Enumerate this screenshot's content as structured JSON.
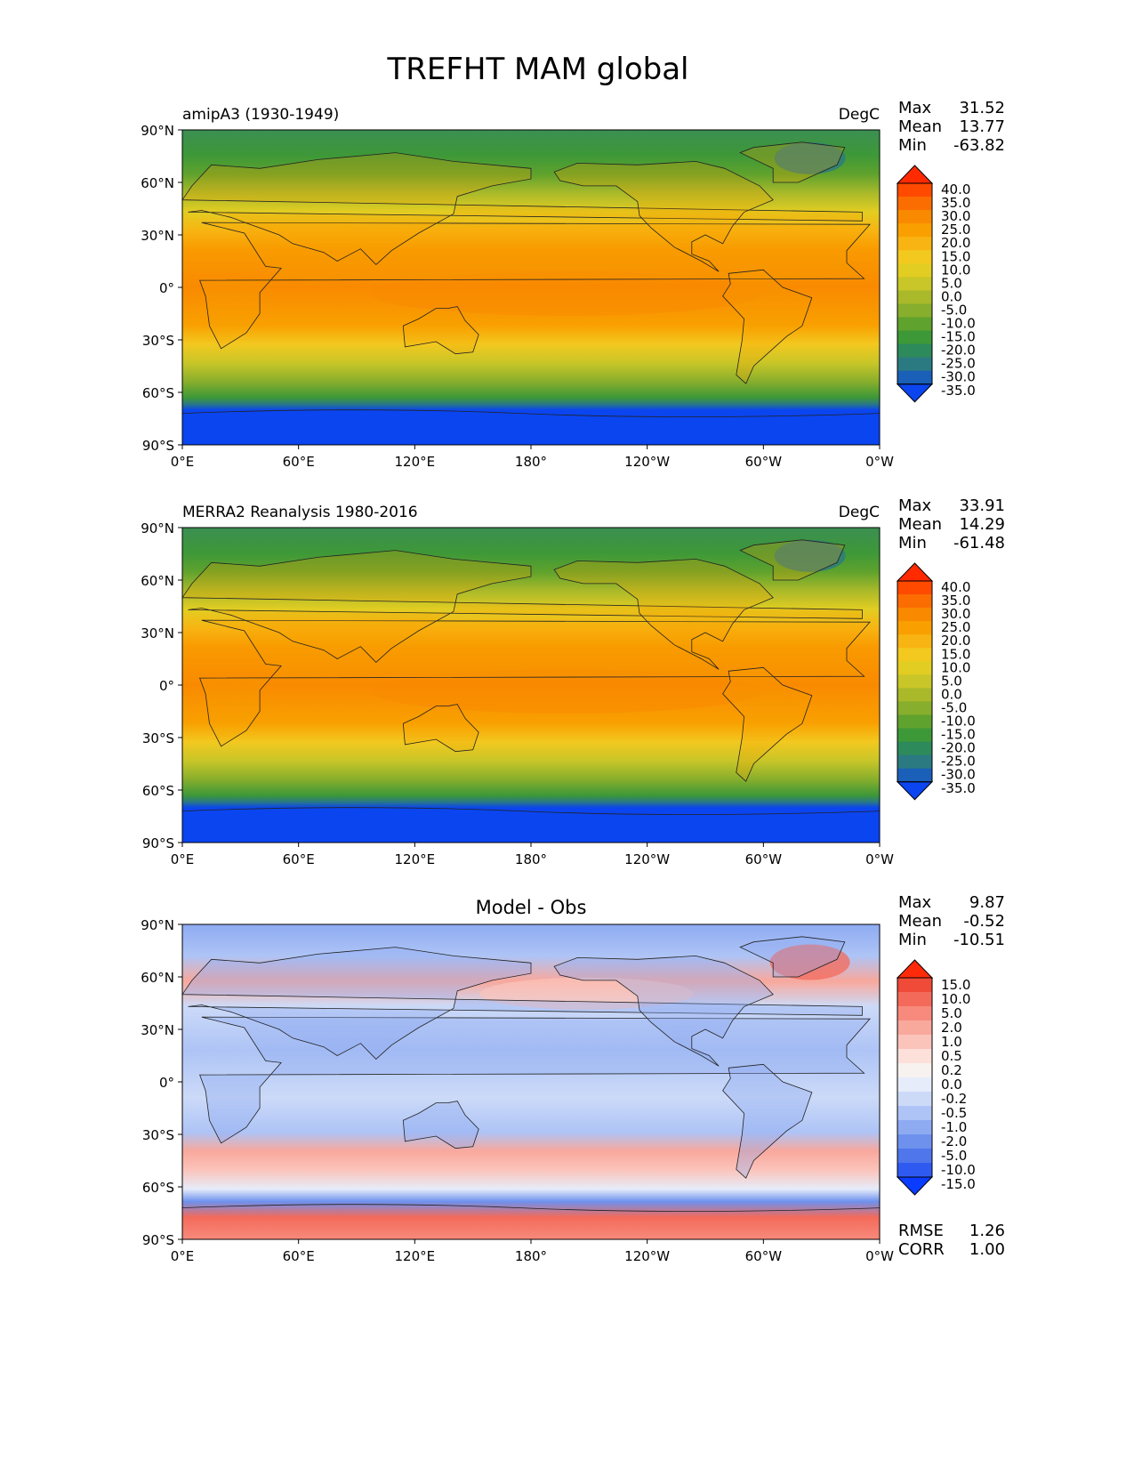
{
  "figure": {
    "title": "TREFHT MAM global"
  },
  "xticks": [
    "0°E",
    "60°E",
    "120°E",
    "180°",
    "120°W",
    "60°W",
    "0°W"
  ],
  "yticks": [
    "90°N",
    "60°N",
    "30°N",
    "0°",
    "30°S",
    "60°S",
    "90°S"
  ],
  "panels": [
    {
      "title_left": "amipA3 (1930-1949)",
      "title_center": "",
      "title_right": "DegC",
      "stats": [
        {
          "label": "Max",
          "value": "31.52"
        },
        {
          "label": "Mean",
          "value": "13.77"
        },
        {
          "label": "Min",
          "value": "-63.82"
        }
      ],
      "colorbar": {
        "levels": [
          "40.0",
          "35.0",
          "30.0",
          "25.0",
          "20.0",
          "15.0",
          "10.0",
          "5.0",
          "0.0",
          "-5.0",
          "-10.0",
          "-15.0",
          "-20.0",
          "-25.0",
          "-30.0",
          "-35.0"
        ],
        "colors": [
          "#ff2a00",
          "#ff4a00",
          "#fb6d00",
          "#f98a00",
          "#f9a000",
          "#f8b412",
          "#f3c81f",
          "#e2cd22",
          "#c8c628",
          "#a9b92a",
          "#87ae2c",
          "#5fa22d",
          "#3d9838",
          "#2d8a5b",
          "#2b7a82",
          "#1a60b8",
          "#0a45f0"
        ]
      }
    },
    {
      "title_left": "MERRA2 Reanalysis 1980-2016",
      "title_center": "",
      "title_right": "DegC",
      "stats": [
        {
          "label": "Max",
          "value": "33.91"
        },
        {
          "label": "Mean",
          "value": "14.29"
        },
        {
          "label": "Min",
          "value": "-61.48"
        }
      ],
      "colorbar": {
        "levels": [
          "40.0",
          "35.0",
          "30.0",
          "25.0",
          "20.0",
          "15.0",
          "10.0",
          "5.0",
          "0.0",
          "-5.0",
          "-10.0",
          "-15.0",
          "-20.0",
          "-25.0",
          "-30.0",
          "-35.0"
        ],
        "colors": [
          "#ff2a00",
          "#ff4a00",
          "#fb6d00",
          "#f98a00",
          "#f9a000",
          "#f8b412",
          "#f3c81f",
          "#e2cd22",
          "#c8c628",
          "#a9b92a",
          "#87ae2c",
          "#5fa22d",
          "#3d9838",
          "#2d8a5b",
          "#2b7a82",
          "#1a60b8",
          "#0a45f0"
        ]
      }
    },
    {
      "title_left": "",
      "title_center": "Model - Obs",
      "title_right": "",
      "stats": [
        {
          "label": "Max",
          "value": "9.87"
        },
        {
          "label": "Mean",
          "value": "-0.52"
        },
        {
          "label": "Min",
          "value": "-10.51"
        }
      ],
      "extra_stats": [
        {
          "label": "RMSE",
          "value": "1.26"
        },
        {
          "label": "CORR",
          "value": "1.00"
        }
      ],
      "colorbar": {
        "levels": [
          "15.0",
          "10.0",
          "5.0",
          "2.0",
          "1.0",
          "0.5",
          "0.2",
          "0.0",
          "-0.2",
          "-0.5",
          "-1.0",
          "-2.0",
          "-5.0",
          "-10.0",
          "-15.0"
        ],
        "colors": [
          "#ff2a0a",
          "#f04a38",
          "#f46a5a",
          "#f78a7c",
          "#f9a89c",
          "#fbc4bb",
          "#fde0da",
          "#f7f1f0",
          "#e6ecfa",
          "#ccdaf8",
          "#aec4f6",
          "#8eabf2",
          "#6e91ee",
          "#4f76ea",
          "#2f5af2",
          "#0a3cff"
        ]
      }
    }
  ],
  "chart_data": [
    {
      "type": "heatmap",
      "title": "amipA3 (1930-1949)",
      "units": "DegC",
      "projection": "global lat-lon map",
      "xlim": [
        "0°E",
        "0°W"
      ],
      "ylim": [
        "90°S",
        "90°N"
      ],
      "stats": {
        "max": 31.52,
        "mean": 13.77,
        "min": -63.82
      },
      "colorbar_levels": [
        -35,
        -30,
        -25,
        -20,
        -15,
        -10,
        -5,
        0,
        5,
        10,
        15,
        20,
        25,
        30,
        35,
        40
      ],
      "colorbar_extend": "both"
    },
    {
      "type": "heatmap",
      "title": "MERRA2 Reanalysis 1980-2016",
      "units": "DegC",
      "projection": "global lat-lon map",
      "xlim": [
        "0°E",
        "0°W"
      ],
      "ylim": [
        "90°S",
        "90°N"
      ],
      "stats": {
        "max": 33.91,
        "mean": 14.29,
        "min": -61.48
      },
      "colorbar_levels": [
        -35,
        -30,
        -25,
        -20,
        -15,
        -10,
        -5,
        0,
        5,
        10,
        15,
        20,
        25,
        30,
        35,
        40
      ],
      "colorbar_extend": "both"
    },
    {
      "type": "heatmap",
      "title": "Model - Obs",
      "projection": "global lat-lon map",
      "xlim": [
        "0°E",
        "0°W"
      ],
      "ylim": [
        "90°S",
        "90°N"
      ],
      "stats": {
        "max": 9.87,
        "mean": -0.52,
        "min": -10.51,
        "rmse": 1.26,
        "corr": 1.0
      },
      "colorbar_levels": [
        -15,
        -10,
        -5,
        -2,
        -1,
        -0.5,
        -0.2,
        0,
        0.2,
        0.5,
        1,
        2,
        5,
        10,
        15
      ],
      "colorbar_extend": "both"
    }
  ]
}
